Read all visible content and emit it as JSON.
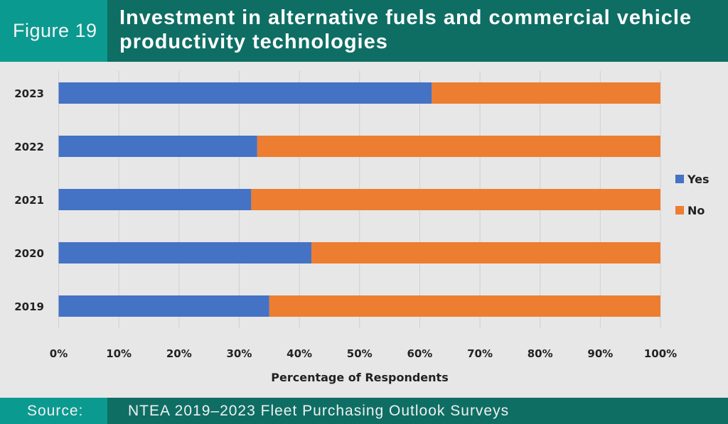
{
  "header": {
    "figure_label": "Figure 19",
    "title": "Investment in alternative fuels and commercial vehicle productivity technologies"
  },
  "footer": {
    "source_label": "Source:",
    "source_text": "NTEA 2019–2023 Fleet Purchasing Outlook Surveys"
  },
  "chart_data": {
    "type": "bar",
    "orientation": "horizontal",
    "stacked": true,
    "categories": [
      "2023",
      "2022",
      "2021",
      "2020",
      "2019"
    ],
    "series": [
      {
        "name": "Yes",
        "color": "#4472c4",
        "values": [
          62,
          33,
          32,
          42,
          35
        ]
      },
      {
        "name": "No",
        "color": "#ed7d31",
        "values": [
          38,
          67,
          68,
          58,
          65
        ]
      }
    ],
    "xlabel": "Percentage of Respondents",
    "ylabel": "",
    "xlim": [
      0,
      100
    ],
    "xticks": [
      "0%",
      "10%",
      "20%",
      "30%",
      "40%",
      "50%",
      "60%",
      "70%",
      "80%",
      "90%",
      "100%"
    ],
    "grid": true,
    "legend": "right"
  }
}
